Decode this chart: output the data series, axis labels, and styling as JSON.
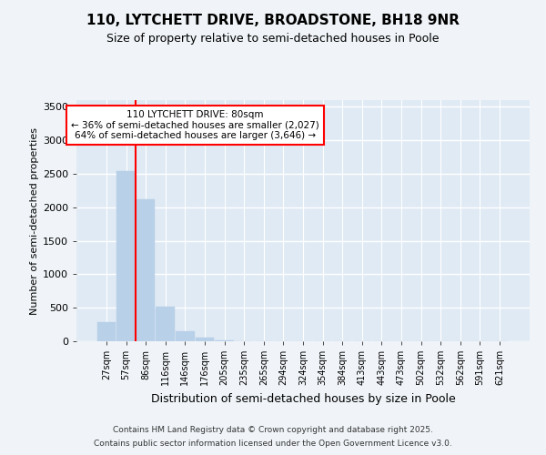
{
  "title_line1": "110, LYTCHETT DRIVE, BROADSTONE, BH18 9NR",
  "title_line2": "Size of property relative to semi-detached houses in Poole",
  "xlabel": "Distribution of semi-detached houses by size in Poole",
  "ylabel": "Number of semi-detached properties",
  "categories": [
    "27sqm",
    "57sqm",
    "86sqm",
    "116sqm",
    "146sqm",
    "176sqm",
    "205sqm",
    "235sqm",
    "265sqm",
    "294sqm",
    "324sqm",
    "354sqm",
    "384sqm",
    "413sqm",
    "443sqm",
    "473sqm",
    "502sqm",
    "532sqm",
    "562sqm",
    "591sqm",
    "621sqm"
  ],
  "values": [
    285,
    2540,
    2120,
    520,
    155,
    60,
    15,
    0,
    0,
    0,
    0,
    0,
    0,
    0,
    0,
    0,
    0,
    0,
    0,
    0,
    0
  ],
  "bar_color": "#b8d0e8",
  "bar_edgecolor": "#b8d0e8",
  "property_line_x": 1.5,
  "annotation_text_line1": "110 LYTCHETT DRIVE: 80sqm",
  "annotation_text_line2": "← 36% of semi-detached houses are smaller (2,027)",
  "annotation_text_line3": "64% of semi-detached houses are larger (3,646) →",
  "ylim": [
    0,
    3600
  ],
  "yticks": [
    0,
    500,
    1000,
    1500,
    2000,
    2500,
    3000,
    3500
  ],
  "footer_line1": "Contains HM Land Registry data © Crown copyright and database right 2025.",
  "footer_line2": "Contains public sector information licensed under the Open Government Licence v3.0.",
  "bg_color": "#f0f4f8",
  "plot_bg_color": "#e0eaf4"
}
